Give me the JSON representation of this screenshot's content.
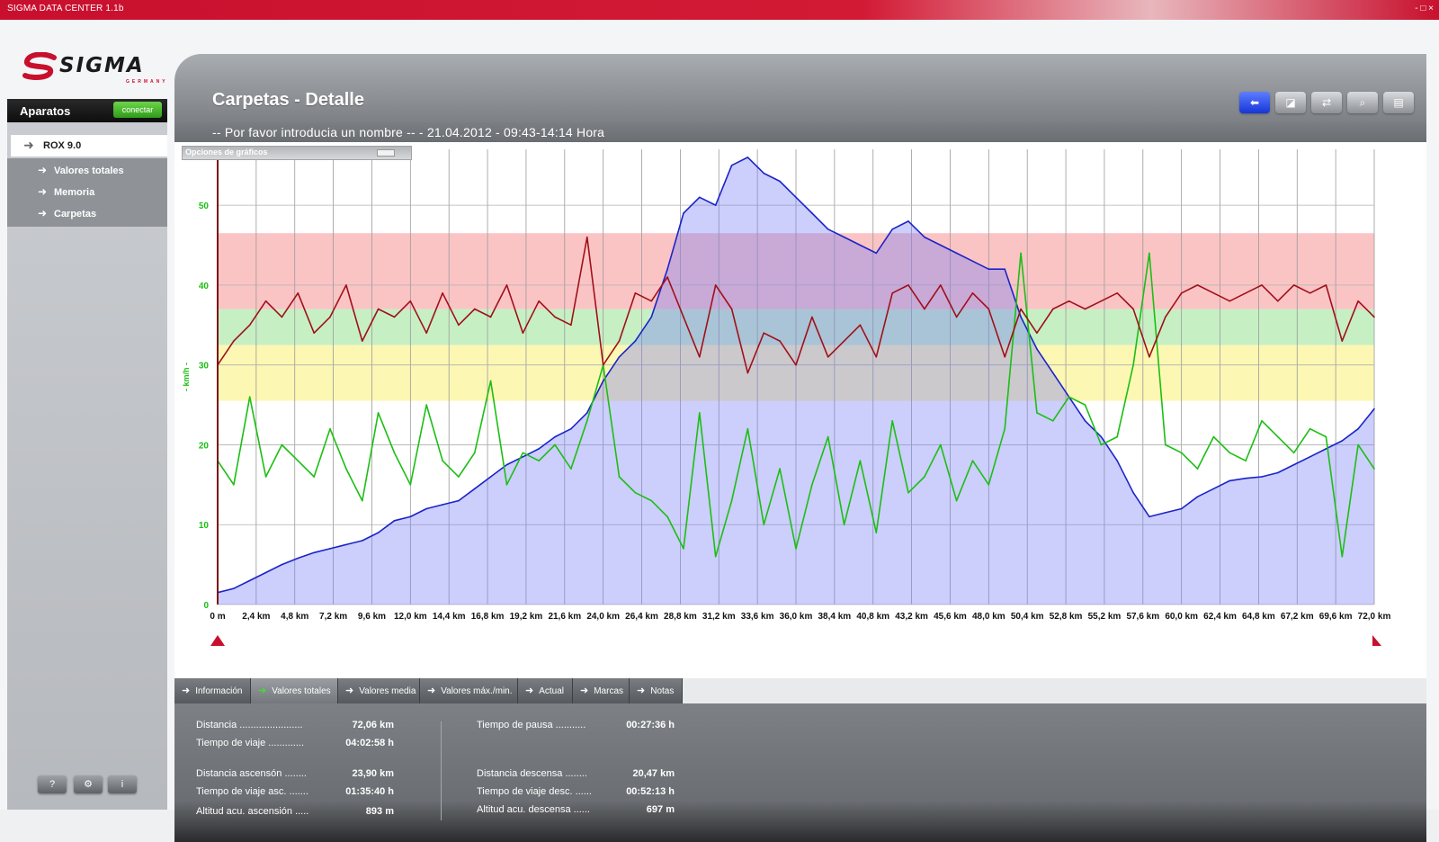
{
  "window": {
    "title": "SIGMA DATA CENTER 1.1b",
    "controls": "- □ ×"
  },
  "logo": {
    "text": "SIGMA",
    "subtext": "GERMANY"
  },
  "sidebar": {
    "header": "Aparatos",
    "connect_button": "conectar",
    "device": "ROX 9.0",
    "items": [
      {
        "label": "Valores totales"
      },
      {
        "label": "Memoria"
      },
      {
        "label": "Carpetas"
      }
    ],
    "bottom_buttons": [
      "?",
      "⚙",
      "i"
    ]
  },
  "header": {
    "title": "Carpetas - Detalle",
    "subtitle": "-- Por favor introducia un nombre -- - 21.04.2012 - 09:43-14:14 Hora",
    "toolbar_icons": [
      "back-icon",
      "chart-icon",
      "time-icon",
      "zoom-icon",
      "print-icon"
    ]
  },
  "chart_options_label": "Opciones de gráficos",
  "chart_data": {
    "type": "line",
    "ylabel": "- km/h -",
    "ylim": [
      0,
      57
    ],
    "yticks": [
      0,
      10,
      20,
      30,
      40,
      50
    ],
    "xlim": [
      0,
      72.0
    ],
    "xticks": [
      "0 m",
      "2,4 km",
      "4,8 km",
      "7,2 km",
      "9,6 km",
      "12,0 km",
      "14,4 km",
      "16,8 km",
      "19,2 km",
      "21,6 km",
      "24,0 km",
      "26,4 km",
      "28,8 km",
      "31,2 km",
      "33,6 km",
      "36,0 km",
      "38,4 km",
      "40,8 km",
      "43,2 km",
      "45,6 km",
      "48,0 km",
      "50,4 km",
      "52,8 km",
      "55,2 km",
      "57,6 km",
      "60,0 km",
      "62,4 km",
      "64,8 km",
      "67,2 km",
      "69,6 km",
      "72,0 km"
    ],
    "zones": [
      {
        "from": 25.5,
        "to": 32.5,
        "color": "#fdf7b4"
      },
      {
        "from": 32.5,
        "to": 37.0,
        "color": "#c7efc4"
      },
      {
        "from": 37.0,
        "to": 46.5,
        "color": "#fbc4c4"
      }
    ],
    "series": [
      {
        "name": "altitude",
        "color": "#1a24c9",
        "fill": "rgba(120,125,245,0.38)",
        "x": [
          0,
          1,
          2,
          3,
          4,
          5,
          6,
          7,
          8,
          9,
          10,
          11,
          12,
          13,
          14,
          15,
          16,
          17,
          18,
          19,
          20,
          21,
          22,
          23,
          24,
          25,
          26,
          27,
          28,
          29,
          30,
          31,
          32,
          33,
          34,
          35,
          36,
          37,
          38,
          39,
          40,
          41,
          42,
          43,
          44,
          45,
          46,
          47,
          48,
          49,
          50,
          51,
          52,
          53,
          54,
          55,
          56,
          57,
          58,
          59,
          60,
          61,
          62,
          63,
          64,
          65,
          66,
          67,
          68,
          69,
          70,
          71,
          72
        ],
        "y": [
          1.5,
          2,
          3,
          4,
          5,
          5.8,
          6.5,
          7,
          7.5,
          8,
          9,
          10.5,
          11,
          12,
          12.5,
          13,
          14.5,
          16,
          17.5,
          18.5,
          19.5,
          21,
          22,
          24,
          28,
          31,
          33,
          36,
          42,
          49,
          51,
          50,
          55,
          56,
          54,
          53,
          51,
          49,
          47,
          46,
          45,
          44,
          47,
          48,
          46,
          45,
          44,
          43,
          42,
          42,
          36,
          32,
          29,
          26,
          23,
          21,
          18,
          14,
          11,
          11.5,
          12,
          13.5,
          14.5,
          15.5,
          15.8,
          16,
          16.5,
          17.5,
          18.5,
          19.5,
          20.5,
          22,
          24.5
        ]
      },
      {
        "name": "speed",
        "color": "#1bbf13",
        "x": [
          0,
          1,
          2,
          3,
          4,
          5,
          6,
          7,
          8,
          9,
          10,
          11,
          12,
          13,
          14,
          15,
          16,
          17,
          18,
          19,
          20,
          21,
          22,
          23,
          24,
          25,
          26,
          27,
          28,
          29,
          30,
          31,
          32,
          33,
          34,
          35,
          36,
          37,
          38,
          39,
          40,
          41,
          42,
          43,
          44,
          45,
          46,
          47,
          48,
          49,
          50,
          51,
          52,
          53,
          54,
          55,
          56,
          57,
          58,
          59,
          60,
          61,
          62,
          63,
          64,
          65,
          66,
          67,
          68,
          69,
          70,
          71,
          72
        ],
        "y": [
          18,
          15,
          26,
          16,
          20,
          18,
          16,
          22,
          17,
          13,
          24,
          19,
          15,
          25,
          18,
          16,
          19,
          28,
          15,
          19,
          18,
          20,
          17,
          23,
          30,
          16,
          14,
          13,
          11,
          7,
          24,
          6,
          13,
          22,
          10,
          17,
          7,
          15,
          21,
          10,
          18,
          9,
          23,
          14,
          16,
          20,
          13,
          18,
          15,
          22,
          44,
          24,
          23,
          26,
          25,
          20,
          21,
          30,
          44,
          20,
          19,
          17,
          21,
          19,
          18,
          23,
          21,
          19,
          22,
          21,
          6,
          20,
          17
        ]
      },
      {
        "name": "heart-rate",
        "color": "#a0101a",
        "x": [
          0,
          1,
          2,
          3,
          4,
          5,
          6,
          7,
          8,
          9,
          10,
          11,
          12,
          13,
          14,
          15,
          16,
          17,
          18,
          19,
          20,
          21,
          22,
          23,
          24,
          25,
          26,
          27,
          28,
          29,
          30,
          31,
          32,
          33,
          34,
          35,
          36,
          37,
          38,
          39,
          40,
          41,
          42,
          43,
          44,
          45,
          46,
          47,
          48,
          49,
          50,
          51,
          52,
          53,
          54,
          55,
          56,
          57,
          58,
          59,
          60,
          61,
          62,
          63,
          64,
          65,
          66,
          67,
          68,
          69,
          70,
          71,
          72
        ],
        "y": [
          30,
          33,
          35,
          38,
          36,
          39,
          34,
          36,
          40,
          33,
          37,
          36,
          38,
          34,
          39,
          35,
          37,
          36,
          40,
          34,
          38,
          36,
          35,
          46,
          30,
          33,
          39,
          38,
          41,
          36,
          31,
          40,
          37,
          29,
          34,
          33,
          30,
          36,
          31,
          33,
          35,
          31,
          39,
          40,
          37,
          40,
          36,
          39,
          37,
          31,
          37,
          34,
          37,
          38,
          37,
          38,
          39,
          37,
          31,
          36,
          39,
          40,
          39,
          38,
          39,
          40,
          38,
          40,
          39,
          40,
          33,
          38,
          36
        ]
      }
    ]
  },
  "tabs": [
    {
      "label": "Información"
    },
    {
      "label": "Valores totales"
    },
    {
      "label": "Valores media"
    },
    {
      "label": "Valores máx./min."
    },
    {
      "label": "Actual"
    },
    {
      "label": "Marcas"
    },
    {
      "label": "Notas"
    }
  ],
  "stats": {
    "left": [
      {
        "label": "Distancia .......................",
        "value": "72,06 km"
      },
      {
        "label": "Tiempo de viaje .............",
        "value": "04:02:58 h"
      },
      {
        "label": "Distancia ascensón ........",
        "value": "23,90 km"
      },
      {
        "label": "Tiempo de viaje asc. .......",
        "value": "01:35:40 h"
      },
      {
        "label": "Altitud acu. ascensión .....",
        "value": "893 m"
      }
    ],
    "right": [
      {
        "label": "Tiempo de pausa ...........",
        "value": "00:27:36 h"
      },
      {
        "label": "Distancia descensa ........",
        "value": "20,47 km"
      },
      {
        "label": "Tiempo de viaje desc. ......",
        "value": "00:52:13 h"
      },
      {
        "label": "Altitud acu. descensa ......",
        "value": "697 m"
      }
    ]
  }
}
